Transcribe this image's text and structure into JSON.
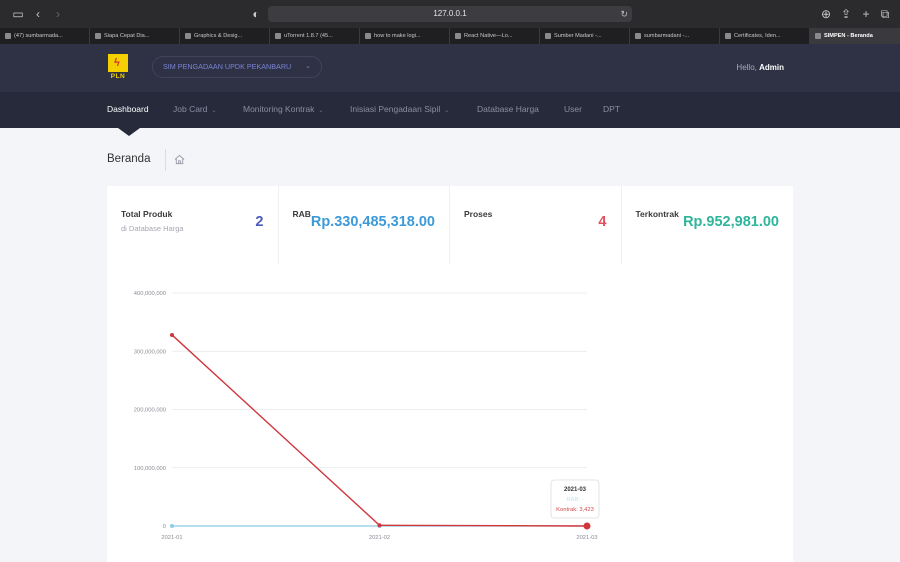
{
  "browser": {
    "url": "127.0.0.1",
    "tabs": [
      {
        "label": "(47) sumbarmada...",
        "active": false
      },
      {
        "label": "Siapa Cepat Dia...",
        "active": false
      },
      {
        "label": "Graphics & Desig...",
        "active": false
      },
      {
        "label": "uTorrent 1.8.7 (45...",
        "active": false
      },
      {
        "label": "how to make logi...",
        "active": false
      },
      {
        "label": "React Native—Lo...",
        "active": false
      },
      {
        "label": "Sumber Madani -...",
        "active": false
      },
      {
        "label": "sumbarmadani -...",
        "active": false
      },
      {
        "label": "Certificates, Iden...",
        "active": false
      },
      {
        "label": "SIMPEN - Beranda",
        "active": true
      }
    ]
  },
  "header": {
    "logo_text": "PLN",
    "unit_select": "SIM PENGADAAN UPDK PEKANBARU",
    "greeting_prefix": "Hello,",
    "username": "Admin"
  },
  "nav": {
    "items": [
      {
        "label": "Dashboard",
        "active": true,
        "dropdown": false
      },
      {
        "label": "Job Card",
        "active": false,
        "dropdown": true
      },
      {
        "label": "Monitoring Kontrak",
        "active": false,
        "dropdown": true
      },
      {
        "label": "Inisiasi Pengadaan Sipil",
        "active": false,
        "dropdown": true
      },
      {
        "label": "Database Harga",
        "active": false,
        "dropdown": false
      },
      {
        "label": "User",
        "active": false,
        "dropdown": false
      },
      {
        "label": "DPT",
        "active": false,
        "dropdown": false
      }
    ]
  },
  "page": {
    "title": "Beranda",
    "home_icon": "home-icon"
  },
  "stats": [
    {
      "label": "Total Produk",
      "sub": "di Database Harga",
      "value": "2",
      "color": "#4b5bb8"
    },
    {
      "label": "RAB",
      "sub": "",
      "value": "Rp.330,485,318.00",
      "color": "#3d9ad9"
    },
    {
      "label": "Proses",
      "sub": "",
      "value": "4",
      "color": "#e0505c"
    },
    {
      "label": "Terkontrak",
      "sub": "",
      "value": "Rp.952,981.00",
      "color": "#2fb59a"
    }
  ],
  "chart_data": {
    "type": "line",
    "x": [
      "2021-01",
      "2021-02",
      "2021-03"
    ],
    "series": [
      {
        "name": "RAB",
        "values": [
          0,
          0,
          0
        ],
        "color": "#8ecbe8"
      },
      {
        "name": "Kontrak",
        "values": [
          328000000,
          1200000,
          3423
        ],
        "color": "#d0373c"
      }
    ],
    "ylim": [
      0,
      400000000
    ],
    "yticks": [
      "0",
      "100,000,000",
      "200,000,000",
      "300,000,000",
      "400,000,000"
    ],
    "grid": true,
    "tooltip": {
      "title": "2021-03",
      "rab": "RAB: -",
      "kontrak": "Kontrak: 3,423"
    }
  }
}
